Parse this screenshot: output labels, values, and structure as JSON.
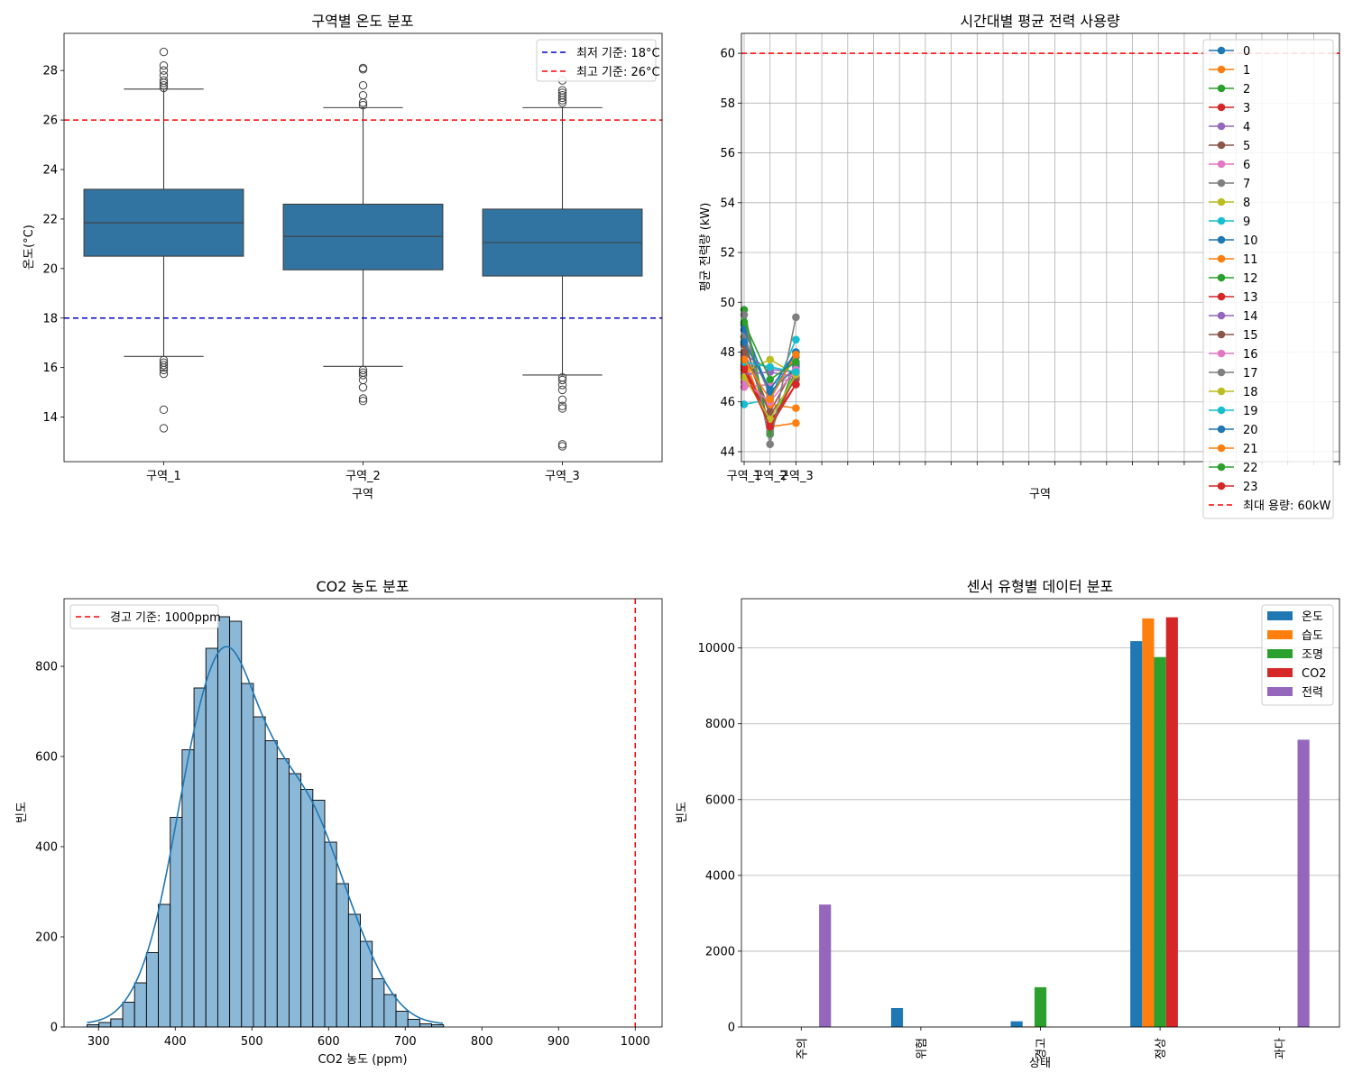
{
  "colors": {
    "box": "#3274a1",
    "hist": "#8cb8d8",
    "kde": "#1f77b4",
    "red": "#ff0000",
    "blue": "#0000cc",
    "grid": "#b0b0b0",
    "tab10": [
      "#1f77b4",
      "#ff7f0e",
      "#2ca02c",
      "#d62728",
      "#9467bd",
      "#8c564b",
      "#e377c2",
      "#7f7f7f",
      "#bcbd22",
      "#17becf"
    ]
  },
  "chart_data": [
    {
      "type": "box",
      "title": "구역별 온도 분포",
      "xlabel": "구역",
      "ylabel": "온도(°C)",
      "ylim": [
        12.2,
        29.5
      ],
      "yticks": [
        14,
        16,
        18,
        20,
        22,
        24,
        26,
        28
      ],
      "categories": [
        "구역_1",
        "구역_2",
        "구역_3"
      ],
      "boxes": [
        {
          "q1": 20.5,
          "median": 21.85,
          "q3": 23.2,
          "whislo": 16.45,
          "whishi": 27.25,
          "fliers": [
            28.75,
            28.2,
            28.0,
            27.8,
            27.6,
            27.5,
            27.4,
            27.3,
            16.3,
            16.2,
            16.1,
            16.0,
            15.9,
            15.75,
            14.3,
            13.55
          ]
        },
        {
          "q1": 19.95,
          "median": 21.3,
          "q3": 22.6,
          "whislo": 16.05,
          "whishi": 26.5,
          "fliers": [
            28.1,
            28.05,
            27.4,
            27.0,
            26.7,
            26.6,
            15.9,
            15.8,
            15.7,
            15.5,
            15.2,
            14.75,
            14.65
          ]
        },
        {
          "q1": 19.7,
          "median": 21.05,
          "q3": 22.4,
          "whislo": 15.7,
          "whishi": 26.5,
          "fliers": [
            27.6,
            27.2,
            27.1,
            27.0,
            26.9,
            26.8,
            26.7,
            15.6,
            15.5,
            15.3,
            15.1,
            14.7,
            14.45,
            14.35,
            12.9,
            12.82
          ]
        }
      ],
      "hlines": [
        {
          "y": 18,
          "color": "#0000cc",
          "label": "최저 기준: 18°C"
        },
        {
          "y": 26,
          "color": "#ff0000",
          "label": "최고 기준: 26°C"
        }
      ],
      "legend_position": "top-right"
    },
    {
      "type": "line",
      "title": "시간대별 평균 전력 사용량",
      "xlabel": "구역",
      "ylabel": "평균 전력량 (kW)",
      "ylim": [
        43.6,
        60.8
      ],
      "yticks": [
        44,
        46,
        48,
        50,
        52,
        54,
        56,
        58,
        60
      ],
      "categories": [
        "구역_1",
        "구역_2",
        "구역_3"
      ],
      "x_max_index": 23,
      "grid": true,
      "series": [
        {
          "name": "0",
          "values": [
            49.1,
            46.2,
            48.0
          ]
        },
        {
          "name": "1",
          "values": [
            47.8,
            45.0,
            45.15
          ]
        },
        {
          "name": "2",
          "values": [
            48.6,
            44.8,
            47.3
          ]
        },
        {
          "name": "3",
          "values": [
            47.4,
            45.1,
            47.0
          ]
        },
        {
          "name": "4",
          "values": [
            47.9,
            47.3,
            47.2
          ]
        },
        {
          "name": "5",
          "values": [
            48.3,
            45.6,
            47.5
          ]
        },
        {
          "name": "6",
          "values": [
            46.6,
            46.7,
            47.0
          ]
        },
        {
          "name": "7",
          "values": [
            48.6,
            46.3,
            47.8
          ]
        },
        {
          "name": "8",
          "values": [
            47.2,
            47.7,
            47.1
          ]
        },
        {
          "name": "9",
          "values": [
            45.9,
            46.1,
            48.5
          ]
        },
        {
          "name": "10",
          "values": [
            48.9,
            46.4,
            47.4
          ]
        },
        {
          "name": "11",
          "values": [
            47.0,
            45.9,
            45.75
          ]
        },
        {
          "name": "12",
          "values": [
            49.7,
            44.7,
            47.6
          ]
        },
        {
          "name": "13",
          "values": [
            47.5,
            45.2,
            46.7
          ]
        },
        {
          "name": "14",
          "values": [
            47.1,
            47.2,
            47.0
          ]
        },
        {
          "name": "15",
          "values": [
            48.0,
            45.5,
            46.9
          ]
        },
        {
          "name": "16",
          "values": [
            46.8,
            46.0,
            47.3
          ]
        },
        {
          "name": "17",
          "values": [
            49.5,
            44.3,
            49.4
          ]
        },
        {
          "name": "18",
          "values": [
            47.0,
            45.3,
            47.1
          ]
        },
        {
          "name": "19",
          "values": [
            47.6,
            47.4,
            47.2
          ]
        },
        {
          "name": "20",
          "values": [
            48.4,
            46.5,
            48.0
          ]
        },
        {
          "name": "21",
          "values": [
            47.7,
            46.1,
            47.9
          ]
        },
        {
          "name": "22",
          "values": [
            49.2,
            46.9,
            47.6
          ]
        },
        {
          "name": "23",
          "values": [
            47.3,
            45.0,
            46.7
          ]
        }
      ],
      "hline": {
        "y": 60,
        "color": "#ff0000",
        "label": "최대 용량: 60kW"
      },
      "legend_position": "top-right"
    },
    {
      "type": "histogram",
      "title": "CO2 농도 분포",
      "xlabel": "CO2 농도 (ppm)",
      "ylabel": "빈도",
      "xlim": [
        255,
        1035
      ],
      "ylim": [
        0,
        950
      ],
      "xticks": [
        300,
        400,
        500,
        600,
        700,
        800,
        900,
        1000
      ],
      "yticks": [
        0,
        200,
        400,
        600,
        800
      ],
      "bin_start": 285,
      "bin_width": 15.5,
      "counts": [
        5,
        10,
        18,
        55,
        98,
        165,
        272,
        465,
        615,
        752,
        840,
        910,
        900,
        762,
        688,
        635,
        595,
        562,
        527,
        503,
        410,
        318,
        250,
        190,
        107,
        72,
        35,
        17,
        7,
        5
      ],
      "kde": true,
      "vline": {
        "x": 1000,
        "color": "#ff0000",
        "label": "경고 기준: 1000ppm"
      },
      "legend_position": "top-left"
    },
    {
      "type": "bar",
      "title": "센서 유형별 데이터 분포",
      "xlabel": "상태",
      "ylabel": "빈도",
      "ylim": [
        0,
        11300
      ],
      "yticks": [
        0,
        2000,
        4000,
        6000,
        8000,
        10000
      ],
      "grid": true,
      "categories": [
        "주의",
        "위험",
        "경고",
        "정상",
        "과다"
      ],
      "series": [
        {
          "name": "온도",
          "values": [
            0,
            500,
            150,
            10180,
            0
          ]
        },
        {
          "name": "습도",
          "values": [
            0,
            0,
            15,
            10780,
            0
          ]
        },
        {
          "name": "조명",
          "values": [
            0,
            0,
            1050,
            9760,
            0
          ]
        },
        {
          "name": "CO2",
          "values": [
            0,
            0,
            0,
            10810,
            0
          ]
        },
        {
          "name": "전력",
          "values": [
            3230,
            0,
            0,
            0,
            7580
          ]
        }
      ],
      "legend_position": "top-right"
    }
  ]
}
